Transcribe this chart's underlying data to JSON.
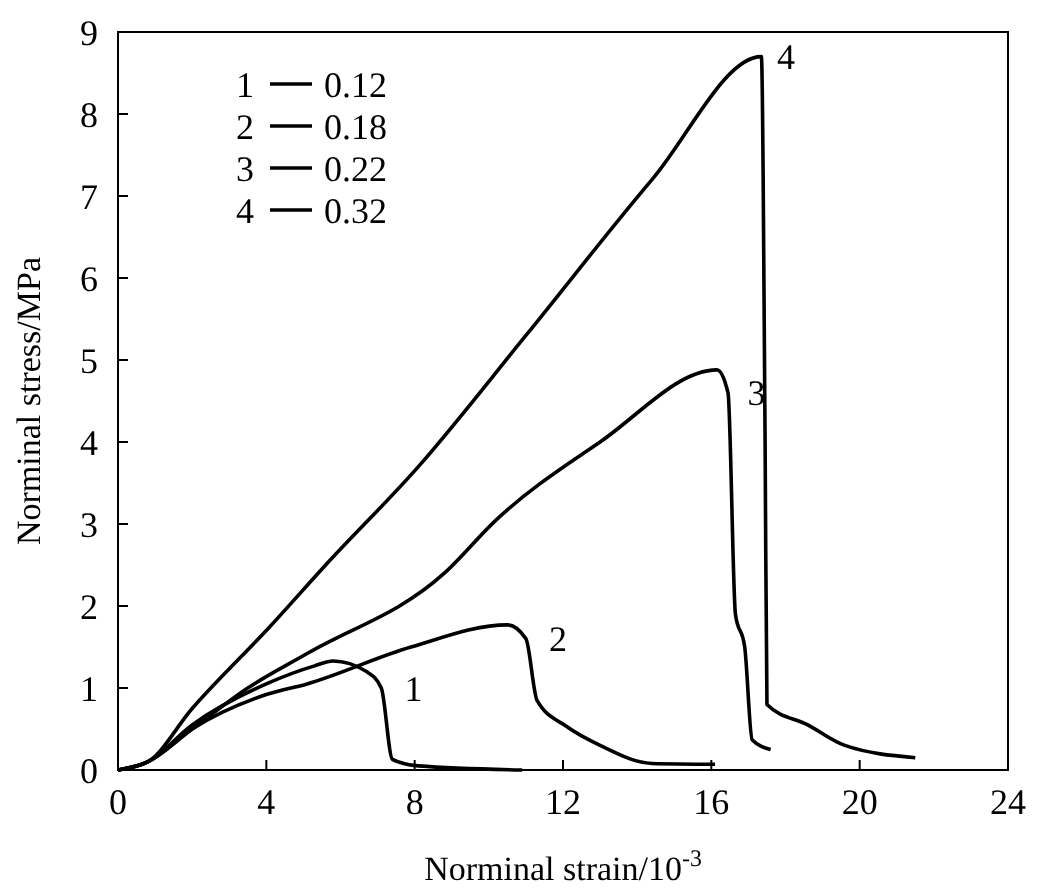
{
  "chart_data": {
    "type": "line",
    "xlabel": "Norminal strain/10$^{-3}$",
    "ylabel": "Norminal stress/MPa",
    "xlim": [
      0,
      24
    ],
    "xticks": [
      0,
      4,
      8,
      12,
      16,
      20,
      24
    ],
    "ylim": [
      0,
      9
    ],
    "yticks": [
      0,
      1,
      2,
      3,
      4,
      5,
      6,
      7,
      8,
      9
    ],
    "grid": false,
    "legend": "top left",
    "marker": "none",
    "line_style": "solid",
    "series": [
      {
        "name": "1",
        "color": "#000000",
        "x": [
          0,
          0.8,
          2,
          4,
          5.3,
          5.8,
          6.7,
          7.1,
          7.4,
          8.1,
          10.9
        ],
        "values": [
          0,
          0.1,
          0.55,
          1.05,
          1.27,
          1.33,
          1.2,
          1.0,
          0.13,
          0.05,
          0.0
        ]
      },
      {
        "name": "2",
        "color": "#000000",
        "x": [
          0,
          0.8,
          2,
          4,
          5.1,
          7.9,
          10.5,
          11,
          11.3,
          12.1,
          13,
          14.4,
          16.1
        ],
        "values": [
          0,
          0.1,
          0.5,
          0.92,
          1.05,
          1.5,
          1.77,
          1.6,
          0.85,
          0.53,
          0.3,
          0.08,
          0.07
        ]
      },
      {
        "name": "3",
        "color": "#000000",
        "x": [
          0,
          0.8,
          2,
          3.5,
          5.1,
          8.8,
          10.2,
          13,
          16.15,
          16.45,
          16.65,
          16.9,
          17.1,
          17.6
        ],
        "values": [
          0,
          0.1,
          0.5,
          1.0,
          1.42,
          2.4,
          3.05,
          4.0,
          4.88,
          4.6,
          1.9,
          1.5,
          0.37,
          0.25
        ]
      },
      {
        "name": "4",
        "color": "#000000",
        "x": [
          0,
          0.8,
          2,
          4.1,
          5.6,
          8.1,
          11,
          14.4,
          17.35,
          17.45,
          17.5,
          18.6,
          19.6,
          21.5
        ],
        "values": [
          0,
          0.1,
          0.75,
          1.75,
          2.5,
          3.7,
          5.3,
          7.2,
          8.7,
          4,
          0.8,
          0.55,
          0.3,
          0.15
        ]
      }
    ],
    "annotations": [
      "0.12",
      "0.18",
      "0.22",
      "0.32"
    ]
  }
}
